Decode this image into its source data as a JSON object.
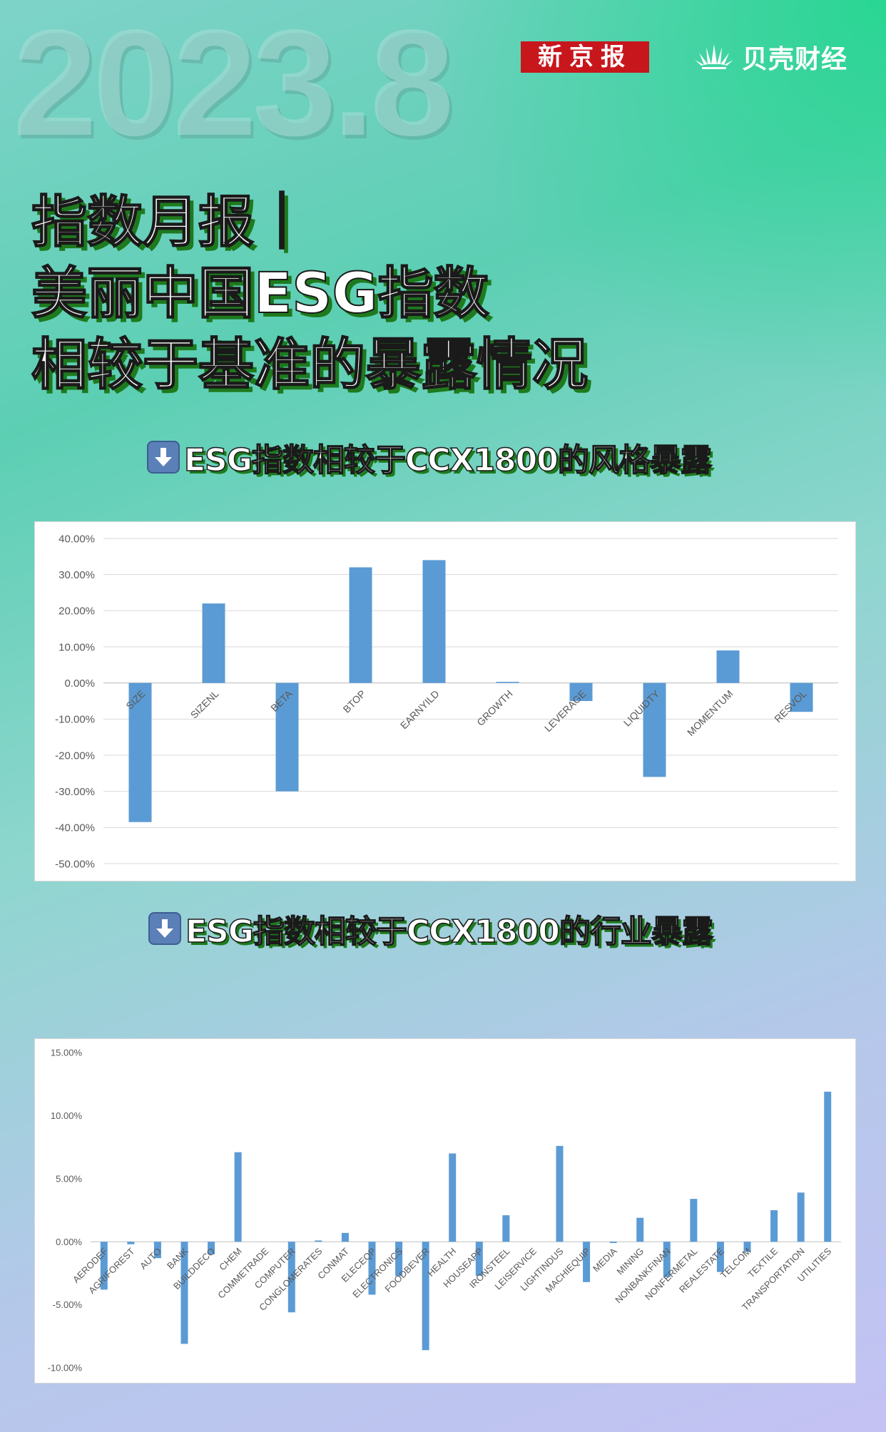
{
  "header": {
    "date": "2023.8",
    "brand_xjb": "新京报",
    "brand_bk": "贝壳财经"
  },
  "title_lines": [
    "指数月报｜",
    "美丽中国ESG指数",
    "相较于基准的暴露情况"
  ],
  "section1": {
    "icon": "down-arrow-icon",
    "label": "ESG指数相较于CCX1800的风格暴露"
  },
  "section2": {
    "icon": "down-arrow-icon",
    "label": "ESG指数相较于CCX1800的行业暴露"
  },
  "colors": {
    "bar": "#5b9bd5",
    "grid": "#d9d9d9",
    "title_shadow": "#1e7a1e",
    "brand_red": "#c8161d"
  },
  "chart_data": [
    {
      "type": "bar",
      "title": "",
      "xlabel": "",
      "ylabel": "",
      "ylim": [
        -0.5,
        0.4
      ],
      "yticks": [
        0.4,
        0.3,
        0.2,
        0.1,
        0.0,
        -0.1,
        -0.2,
        -0.3,
        -0.4,
        -0.5
      ],
      "ytick_labels": [
        "40.00%",
        "30.00%",
        "20.00%",
        "10.00%",
        "0.00%",
        "-10.00%",
        "-20.00%",
        "-30.00%",
        "-40.00%",
        "-50.00%"
      ],
      "grid": true,
      "categories": [
        "SIZE",
        "SIZENL",
        "BETA",
        "BTOP",
        "EARNYILD",
        "GROWTH",
        "LEVERAGE",
        "LIQUIDTY",
        "MOMENTUM",
        "RESVOL"
      ],
      "values": [
        -0.385,
        0.22,
        -0.3,
        0.32,
        0.34,
        0.003,
        -0.05,
        -0.26,
        0.09,
        -0.08
      ]
    },
    {
      "type": "bar",
      "title": "",
      "xlabel": "",
      "ylabel": "",
      "ylim": [
        -0.1,
        0.15
      ],
      "yticks": [
        0.15,
        0.1,
        0.05,
        0.0,
        -0.05,
        -0.1
      ],
      "ytick_labels": [
        "15.00%",
        "10.00%",
        "5.00%",
        "0.00%",
        "-5.00%",
        "-10.00%"
      ],
      "grid": false,
      "categories": [
        "AERODEF",
        "AGRIFOREST",
        "AUTO",
        "BANK",
        "BUILDDECO",
        "CHEM",
        "COMMETRADE",
        "COMPUTER",
        "CONGLOMERATES",
        "CONMAT",
        "ELECEQP",
        "ELECTRONICS",
        "FOODBEVER",
        "HEALTH",
        "HOUSEAPP",
        "IRONSTEEL",
        "LEISERVICE",
        "LIGHTINDUS",
        "MACHIEQUIP",
        "MEDIA",
        "MINING",
        "NONBANKFINAN",
        "NONFERMETAL",
        "REALESTATE",
        "TELCOM",
        "TEXTILE",
        "TRANSPORTATION",
        "UTILITIES"
      ],
      "values": [
        -0.038,
        -0.002,
        -0.013,
        -0.081,
        -0.01,
        0.071,
        0.0,
        -0.056,
        0.001,
        0.007,
        -0.042,
        -0.027,
        -0.086,
        0.07,
        -0.027,
        0.021,
        0.0,
        0.076,
        -0.032,
        -0.001,
        0.019,
        -0.028,
        0.034,
        -0.024,
        -0.008,
        0.025,
        0.039,
        0.119
      ]
    }
  ]
}
